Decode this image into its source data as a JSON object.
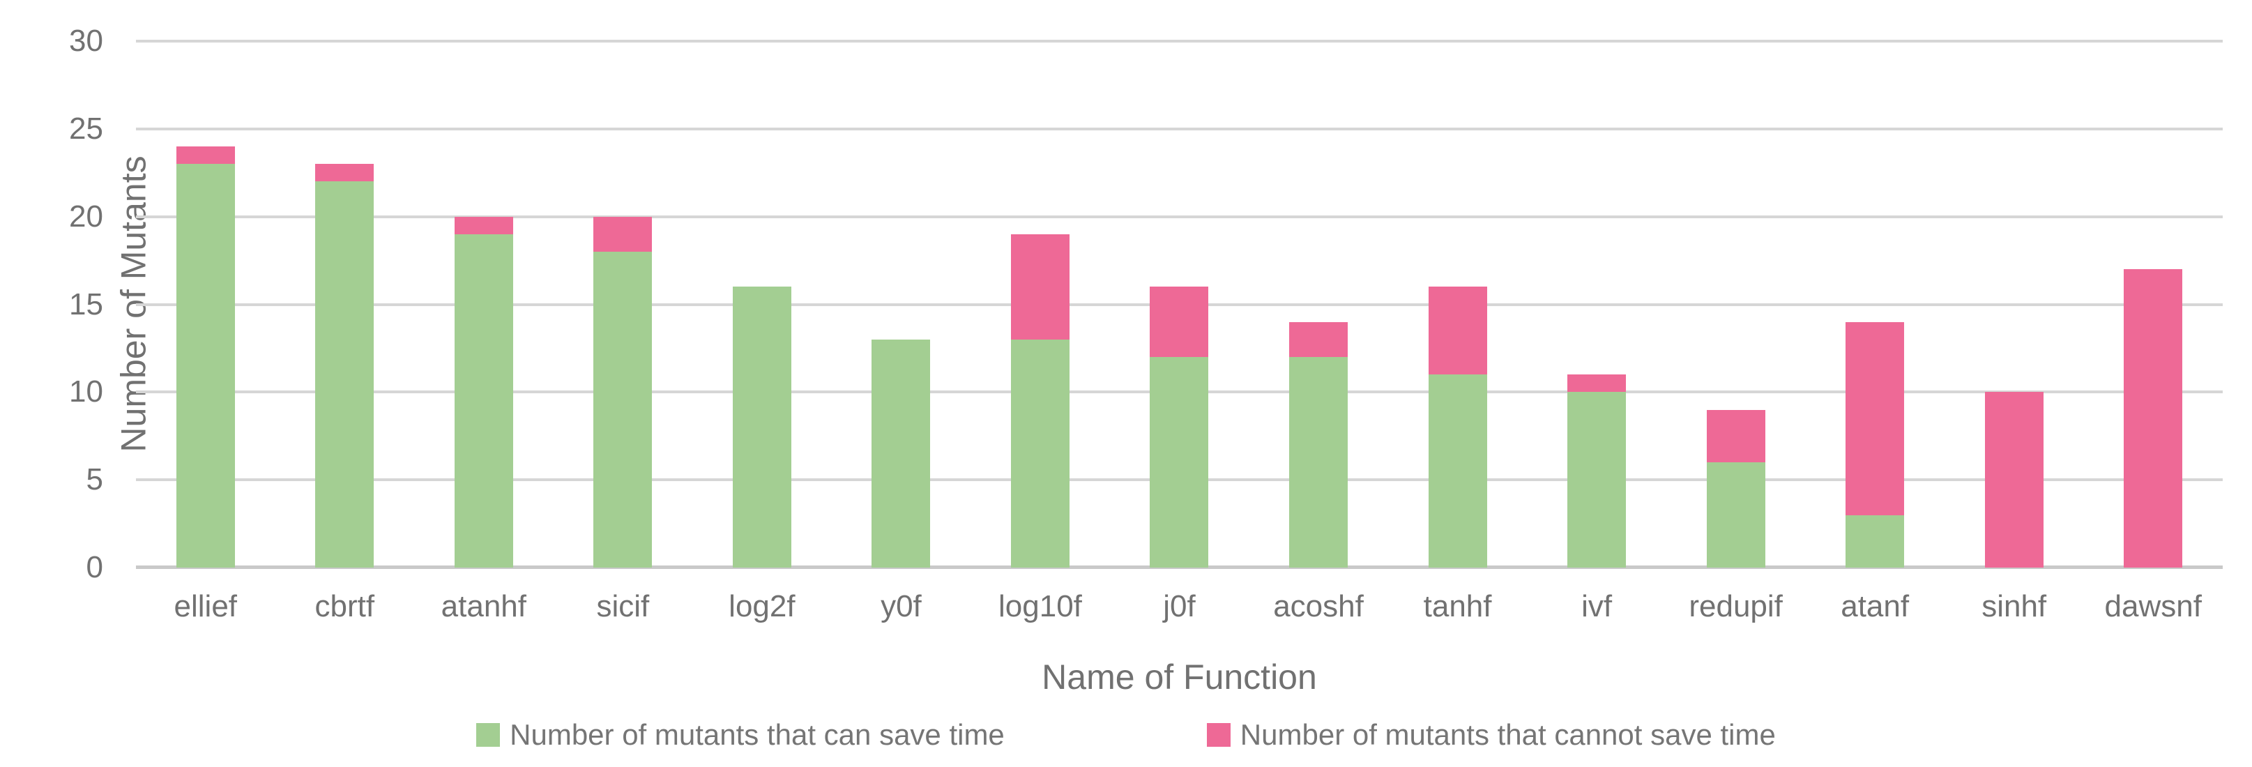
{
  "chart_data": {
    "type": "bar",
    "stacked": true,
    "title": "",
    "xlabel": "Name of Function",
    "ylabel": "Number of Mutants",
    "ylim": [
      0,
      30
    ],
    "ytick_step": 5,
    "grid": true,
    "legend_position": "bottom",
    "categories": [
      "ellief",
      "cbrtf",
      "atanhf",
      "sicif",
      "log2f",
      "y0f",
      "log10f",
      "j0f",
      "acoshf",
      "tanhf",
      "ivf",
      "redupif",
      "atanf",
      "sinhf",
      "dawsnf"
    ],
    "series": [
      {
        "name": "Number of mutants that can save time",
        "color": "#A3CE92",
        "values": [
          23,
          22,
          19,
          18,
          16,
          13,
          13,
          12,
          12,
          11,
          10,
          6,
          3,
          0,
          0
        ]
      },
      {
        "name": "Number of mutants that cannot save time",
        "color": "#EE6996",
        "values": [
          1,
          1,
          1,
          2,
          0,
          0,
          6,
          4,
          2,
          5,
          1,
          3,
          11,
          10,
          17
        ]
      }
    ],
    "totals": [
      24,
      23,
      20,
      20,
      16,
      13,
      19,
      16,
      14,
      16,
      11,
      9,
      14,
      10,
      17
    ]
  },
  "colors": {
    "gridline": "#D6D6D6",
    "axis_line": "#C9C9C9",
    "text": "#717171",
    "background": "#FFFFFF"
  }
}
